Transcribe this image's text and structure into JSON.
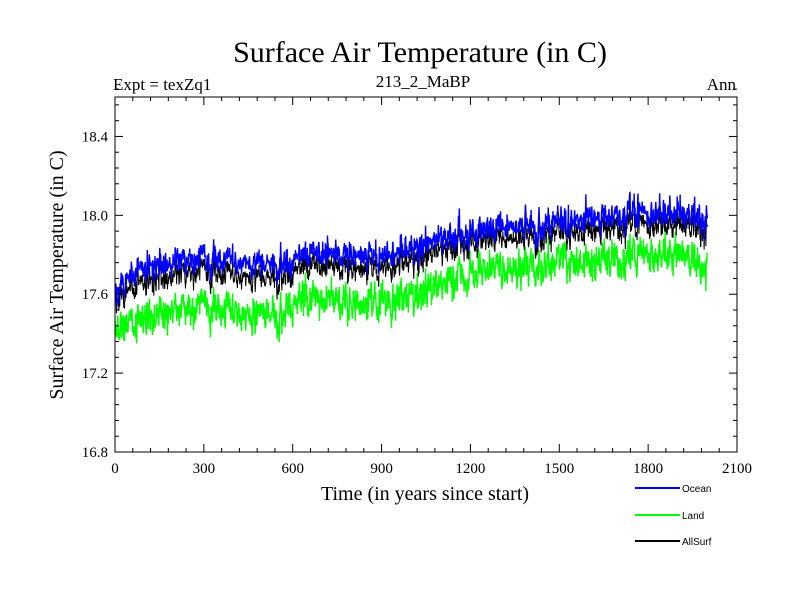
{
  "chart_data": {
    "type": "line",
    "title": "Surface Air Temperature (in C)",
    "subtitle_left": "Expt = texZq1",
    "subtitle_center": "213_2_MaBP",
    "subtitle_right": "Ann",
    "xlabel": "Time (in years since start)",
    "ylabel": "Surface Air Temperature (in C)",
    "xlim": [
      0,
      2100
    ],
    "ylim": [
      16.8,
      18.6
    ],
    "x_ticks": [
      0,
      300,
      600,
      900,
      1200,
      1500,
      1800,
      2100
    ],
    "x_tick_labels": [
      "0",
      "300",
      "600",
      "900",
      "1200",
      "1500",
      "1800",
      "2100"
    ],
    "y_ticks": [
      16.8,
      17.2,
      17.6,
      18.0,
      18.4
    ],
    "y_tick_labels": [
      "16.8",
      "17.2",
      "17.6",
      "18.0",
      "18.4"
    ],
    "x_range": [
      0,
      2000
    ],
    "series": [
      {
        "name": "Ocean",
        "color": "#0000ff",
        "x": [
          0,
          100,
          200,
          300,
          400,
          500,
          600,
          700,
          800,
          900,
          1000,
          1100,
          1200,
          1300,
          1400,
          1500,
          1600,
          1700,
          1800,
          1900,
          2000
        ],
        "values": [
          17.6,
          17.75,
          17.75,
          17.78,
          17.77,
          17.75,
          17.78,
          17.82,
          17.8,
          17.8,
          17.83,
          17.88,
          17.92,
          17.95,
          17.96,
          17.97,
          17.98,
          18.0,
          18.02,
          18.02,
          17.98
        ]
      },
      {
        "name": "Land",
        "color": "#00ff00",
        "x": [
          0,
          100,
          200,
          300,
          400,
          500,
          600,
          700,
          800,
          900,
          1000,
          1100,
          1200,
          1300,
          1400,
          1500,
          1600,
          1700,
          1800,
          1900,
          2000
        ],
        "values": [
          17.4,
          17.5,
          17.5,
          17.55,
          17.52,
          17.5,
          17.55,
          17.6,
          17.55,
          17.57,
          17.6,
          17.65,
          17.72,
          17.73,
          17.75,
          17.76,
          17.77,
          17.78,
          17.8,
          17.8,
          17.75
        ]
      },
      {
        "name": "AllSurf",
        "color": "#000000",
        "x": [
          0,
          100,
          200,
          300,
          400,
          500,
          600,
          700,
          800,
          900,
          1000,
          1100,
          1200,
          1300,
          1400,
          1500,
          1600,
          1700,
          1800,
          1900,
          2000
        ],
        "values": [
          17.55,
          17.68,
          17.68,
          17.72,
          17.7,
          17.68,
          17.72,
          17.76,
          17.73,
          17.74,
          17.77,
          17.82,
          17.87,
          17.89,
          17.9,
          17.91,
          17.92,
          17.94,
          17.96,
          17.96,
          17.92
        ]
      }
    ],
    "legend": {
      "placement": "bottom-right",
      "entries": [
        "Ocean",
        "Land",
        "AllSurf"
      ]
    },
    "grid": false
  }
}
